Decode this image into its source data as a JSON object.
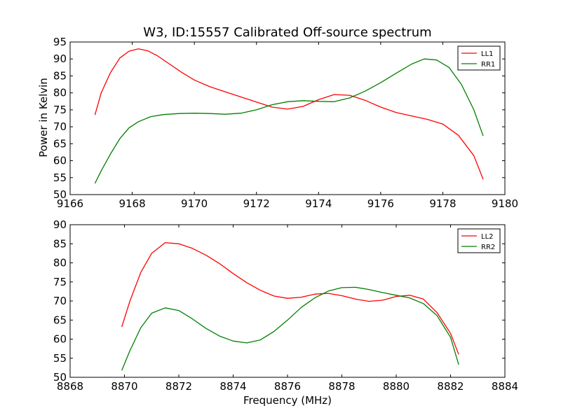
{
  "figure": {
    "title": "W3, ID:15557 Calibrated Off-source spectrum",
    "ylabel": "Power in Kelvin",
    "xlabel": "Frequency (MHz)"
  },
  "chart_data": [
    {
      "type": "line",
      "title": "W3, ID:15557 Calibrated Off-source spectrum",
      "xlabel": "",
      "ylabel": "Power in Kelvin",
      "xlim": [
        9166,
        9180
      ],
      "ylim": [
        50,
        95
      ],
      "xticks": [
        "9166",
        "9168",
        "9170",
        "9172",
        "9174",
        "9176",
        "9178",
        "9180"
      ],
      "yticks": [
        "50",
        "55",
        "60",
        "65",
        "70",
        "75",
        "80",
        "85",
        "90",
        "95"
      ],
      "grid": false,
      "legend_position": "top-right",
      "series": [
        {
          "name": "LL1",
          "color": "#ff0000",
          "points": [
            [
              9166.8,
              73.5
            ],
            [
              9167.0,
              80
            ],
            [
              9167.3,
              86
            ],
            [
              9167.6,
              90.3
            ],
            [
              9167.9,
              92.3
            ],
            [
              9168.2,
              93.0
            ],
            [
              9168.5,
              92.4
            ],
            [
              9168.8,
              91
            ],
            [
              9169.2,
              88.5
            ],
            [
              9169.6,
              86
            ],
            [
              9170.0,
              83.8
            ],
            [
              9170.5,
              81.8
            ],
            [
              9171.0,
              80.3
            ],
            [
              9171.5,
              78.8
            ],
            [
              9172.0,
              77.3
            ],
            [
              9172.5,
              75.8
            ],
            [
              9173.0,
              75.2
            ],
            [
              9173.5,
              76
            ],
            [
              9174.0,
              78
            ],
            [
              9174.5,
              79.5
            ],
            [
              9175.0,
              79.3
            ],
            [
              9175.5,
              77.8
            ],
            [
              9176.0,
              75.8
            ],
            [
              9176.5,
              74.2
            ],
            [
              9177.0,
              73.2
            ],
            [
              9177.5,
              72.2
            ],
            [
              9178.0,
              70.8
            ],
            [
              9178.5,
              67.5
            ],
            [
              9179.0,
              61.5
            ],
            [
              9179.3,
              54.5
            ]
          ]
        },
        {
          "name": "RR1",
          "color": "#008000",
          "points": [
            [
              9166.8,
              53.3
            ],
            [
              9167.0,
              57
            ],
            [
              9167.3,
              62
            ],
            [
              9167.6,
              66.5
            ],
            [
              9167.9,
              69.7
            ],
            [
              9168.2,
              71.5
            ],
            [
              9168.6,
              73
            ],
            [
              9169.0,
              73.6
            ],
            [
              9169.5,
              73.9
            ],
            [
              9170.0,
              74
            ],
            [
              9170.5,
              73.9
            ],
            [
              9171.0,
              73.7
            ],
            [
              9171.5,
              74
            ],
            [
              9172.0,
              75
            ],
            [
              9172.5,
              76.5
            ],
            [
              9173.0,
              77.4
            ],
            [
              9173.5,
              77.7
            ],
            [
              9174.0,
              77.5
            ],
            [
              9174.5,
              77.4
            ],
            [
              9175.0,
              78.5
            ],
            [
              9175.5,
              80.5
            ],
            [
              9176.0,
              83
            ],
            [
              9176.5,
              85.8
            ],
            [
              9177.0,
              88.5
            ],
            [
              9177.4,
              90
            ],
            [
              9177.8,
              89.7
            ],
            [
              9178.2,
              87.5
            ],
            [
              9178.6,
              82.5
            ],
            [
              9179.0,
              75
            ],
            [
              9179.3,
              67.3
            ]
          ]
        }
      ]
    },
    {
      "type": "line",
      "title": "",
      "xlabel": "Frequency (MHz)",
      "ylabel": "",
      "xlim": [
        8868,
        8884
      ],
      "ylim": [
        50,
        90
      ],
      "xticks": [
        "8868",
        "8870",
        "8872",
        "8874",
        "8876",
        "8878",
        "8880",
        "8882",
        "8884"
      ],
      "yticks": [
        "50",
        "55",
        "60",
        "65",
        "70",
        "75",
        "80",
        "85",
        "90"
      ],
      "grid": false,
      "legend_position": "top-right",
      "series": [
        {
          "name": "LL2",
          "color": "#ff0000",
          "points": [
            [
              8869.9,
              63.2
            ],
            [
              8870.2,
              70
            ],
            [
              8870.6,
              77.5
            ],
            [
              8871.0,
              82.5
            ],
            [
              8871.5,
              85.3
            ],
            [
              8872.0,
              85
            ],
            [
              8872.5,
              83.8
            ],
            [
              8873.0,
              82
            ],
            [
              8873.5,
              79.8
            ],
            [
              8874.0,
              77.2
            ],
            [
              8874.5,
              74.8
            ],
            [
              8875.0,
              72.8
            ],
            [
              8875.5,
              71.3
            ],
            [
              8876.0,
              70.7
            ],
            [
              8876.5,
              71
            ],
            [
              8877.0,
              71.8
            ],
            [
              8877.5,
              72
            ],
            [
              8878.0,
              71.4
            ],
            [
              8878.5,
              70.5
            ],
            [
              8879.0,
              69.9
            ],
            [
              8879.5,
              70.2
            ],
            [
              8880.0,
              71.2
            ],
            [
              8880.5,
              71.5
            ],
            [
              8881.0,
              70.5
            ],
            [
              8881.5,
              67
            ],
            [
              8882.0,
              61.5
            ],
            [
              8882.3,
              56
            ]
          ]
        },
        {
          "name": "RR2",
          "color": "#008000",
          "points": [
            [
              8869.9,
              51.8
            ],
            [
              8870.2,
              57
            ],
            [
              8870.6,
              63
            ],
            [
              8871.0,
              66.8
            ],
            [
              8871.5,
              68.2
            ],
            [
              8872.0,
              67.5
            ],
            [
              8872.5,
              65.3
            ],
            [
              8873.0,
              62.8
            ],
            [
              8873.5,
              60.8
            ],
            [
              8874.0,
              59.5
            ],
            [
              8874.5,
              59
            ],
            [
              8875.0,
              59.8
            ],
            [
              8875.5,
              62
            ],
            [
              8876.0,
              65
            ],
            [
              8876.5,
              68.3
            ],
            [
              8877.0,
              70.8
            ],
            [
              8877.5,
              72.6
            ],
            [
              8878.0,
              73.5
            ],
            [
              8878.5,
              73.6
            ],
            [
              8879.0,
              73
            ],
            [
              8879.5,
              72.2
            ],
            [
              8880.0,
              71.5
            ],
            [
              8880.5,
              70.8
            ],
            [
              8881.0,
              69.3
            ],
            [
              8881.5,
              66.2
            ],
            [
              8882.0,
              60.5
            ],
            [
              8882.3,
              53.3
            ]
          ]
        }
      ]
    }
  ]
}
